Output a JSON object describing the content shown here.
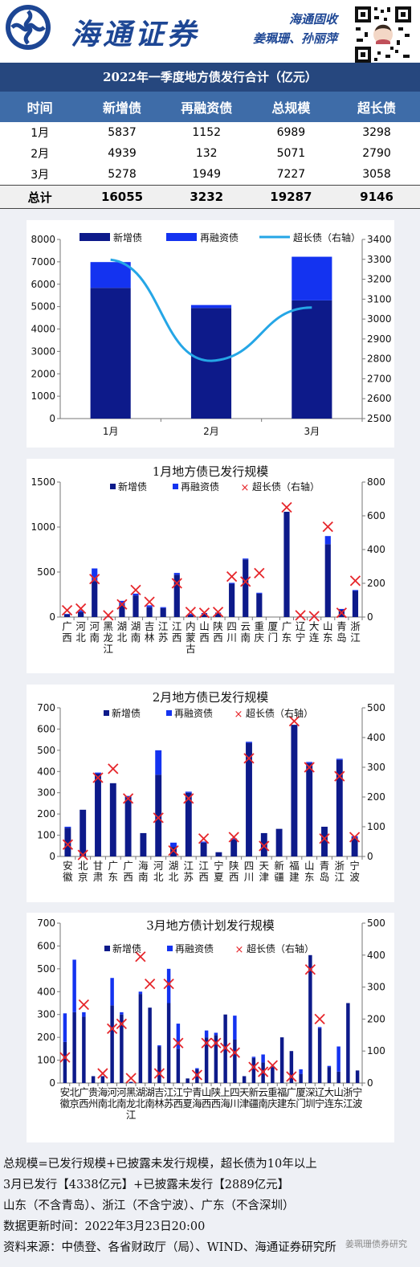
{
  "header": {
    "brand": "海通证券",
    "report_line": "海通固收",
    "authors": "姜珮珊、孙丽萍"
  },
  "summary": {
    "title": "2022年一季度地方债发行合计（亿元）",
    "columns": [
      "时间",
      "新增债",
      "再融资债",
      "总规模",
      "超长债"
    ],
    "rows": [
      [
        "1月",
        "5837",
        "1152",
        "6989",
        "3298"
      ],
      [
        "2月",
        "4939",
        "132",
        "5071",
        "2790"
      ],
      [
        "3月",
        "5278",
        "1949",
        "7227",
        "3058"
      ]
    ],
    "total": [
      "总计",
      "16055",
      "3232",
      "19287",
      "9146"
    ]
  },
  "legend": {
    "new": "新增债",
    "refi": "再融资债",
    "long_right": "超长债（右轴）"
  },
  "chart_titles": {
    "c2": "1月地方债已发行规模",
    "c3": "2月地方债已发行规模",
    "c4": "3月地方债计划发行规模"
  },
  "colors": {
    "new": "#0d1a8a",
    "refi": "#1433f0",
    "line": "#25a6e6",
    "cross": "#e6262b"
  },
  "chart_data": [
    {
      "type": "bar",
      "title": "",
      "categories": [
        "1月",
        "2月",
        "3月"
      ],
      "series": [
        {
          "name": "新增债",
          "values": [
            5837,
            4939,
            5278
          ]
        },
        {
          "name": "再融资债",
          "values": [
            1152,
            132,
            1949
          ]
        },
        {
          "name": "超长债（右轴）",
          "type": "line",
          "axis": "right",
          "values": [
            3298,
            2790,
            3058
          ]
        }
      ],
      "ylim": [
        0,
        8000
      ],
      "y2lim": [
        2500,
        3400
      ],
      "yticks": [
        "0",
        "1000",
        "2000",
        "3000",
        "4000",
        "5000",
        "6000",
        "7000",
        "8000"
      ],
      "y2ticks": [
        "2500",
        "2600",
        "2700",
        "2800",
        "2900",
        "3000",
        "3100",
        "3200",
        "3300",
        "3400"
      ],
      "legend": "top"
    },
    {
      "type": "bar",
      "title": "1月地方债已发行规模",
      "categories": [
        "广西",
        "河北",
        "河南",
        "黑龙江",
        "湖北",
        "湖南",
        "吉林",
        "江苏",
        "江西",
        "内蒙古",
        "山西",
        "陕西",
        "四川",
        "云南",
        "重庆",
        "厦门",
        "广东",
        "辽宁",
        "大连",
        "山东",
        "青岛",
        "浙江"
      ],
      "series": [
        {
          "name": "新增债",
          "values": [
            30,
            55,
            400,
            5,
            140,
            240,
            110,
            100,
            470,
            25,
            35,
            40,
            370,
            640,
            260,
            0,
            1170,
            5,
            5,
            810,
            80,
            290
          ]
        },
        {
          "name": "再融资债",
          "values": [
            5,
            20,
            140,
            0,
            40,
            20,
            20,
            10,
            20,
            10,
            10,
            10,
            10,
            10,
            10,
            0,
            0,
            0,
            0,
            90,
            10,
            10
          ]
        },
        {
          "name": "超长债（右轴）",
          "type": "scatter",
          "axis": "right",
          "values": [
            40,
            50,
            225,
            10,
            75,
            160,
            90,
            null,
            200,
            30,
            25,
            30,
            240,
            210,
            260,
            null,
            650,
            10,
            5,
            535,
            25,
            215
          ]
        }
      ],
      "ylim": [
        0,
        1500
      ],
      "y2lim": [
        0,
        800
      ],
      "yticks": [
        "0",
        "500",
        "1000",
        "1500"
      ],
      "y2ticks": [
        "0",
        "200",
        "400",
        "600",
        "800"
      ],
      "legend": "top"
    },
    {
      "type": "bar",
      "title": "2月地方债已发行规模",
      "categories": [
        "安徽",
        "北京",
        "甘肃",
        "广东",
        "广西",
        "海南",
        "河北",
        "湖北",
        "江苏",
        "江西",
        "宁夏",
        "陕西",
        "四川",
        "天津",
        "新疆",
        "福建",
        "山东",
        "青岛",
        "浙江",
        "宁波"
      ],
      "series": [
        {
          "name": "新增债",
          "values": [
            135,
            220,
            390,
            345,
            280,
            110,
            385,
            45,
            300,
            65,
            20,
            80,
            535,
            110,
            130,
            620,
            440,
            140,
            455,
            90
          ]
        },
        {
          "name": "再融资债",
          "values": [
            5,
            0,
            5,
            0,
            5,
            0,
            115,
            20,
            5,
            5,
            0,
            5,
            5,
            0,
            0,
            0,
            5,
            0,
            5,
            5
          ]
        },
        {
          "name": "超长债（右轴）",
          "type": "scatter",
          "axis": "right",
          "values": [
            40,
            5,
            265,
            295,
            195,
            null,
            130,
            20,
            195,
            60,
            null,
            65,
            330,
            35,
            null,
            455,
            300,
            60,
            270,
            65
          ]
        }
      ],
      "ylim": [
        0,
        700
      ],
      "y2lim": [
        0,
        500
      ],
      "yticks": [
        "0",
        "100",
        "200",
        "300",
        "400",
        "500",
        "600",
        "700"
      ],
      "y2ticks": [
        "0",
        "100",
        "200",
        "300",
        "400",
        "500"
      ],
      "legend": "top"
    },
    {
      "type": "bar",
      "title": "3月地方债计划发行规模",
      "categories": [
        "安徽",
        "北京",
        "广西",
        "贵州",
        "海南",
        "河北",
        "河南",
        "黑龙江",
        "湖北",
        "湖南",
        "吉林",
        "江苏",
        "江西",
        "宁夏",
        "青海",
        "山西",
        "陕西",
        "上海",
        "四川",
        "天津",
        "新疆",
        "云南",
        "重庆",
        "福建",
        "广东",
        "厦门",
        "深圳",
        "辽宁",
        "大连",
        "山东",
        "浙江",
        "宁波"
      ],
      "series": [
        {
          "name": "新增债",
          "values": [
            180,
            310,
            290,
            30,
            30,
            340,
            300,
            5,
            390,
            330,
            160,
            350,
            150,
            20,
            60,
            200,
            210,
            300,
            190,
            30,
            110,
            90,
            70,
            200,
            140,
            40,
            560,
            240,
            70,
            50,
            350,
            55
          ]
        },
        {
          "name": "再融资债",
          "values": [
            125,
            230,
            20,
            0,
            0,
            120,
            10,
            0,
            10,
            0,
            5,
            150,
            110,
            0,
            5,
            30,
            10,
            0,
            105,
            0,
            5,
            35,
            5,
            0,
            0,
            20,
            0,
            5,
            5,
            110,
            0,
            0
          ]
        },
        {
          "name": "超长债（右轴）",
          "type": "scatter",
          "axis": "right",
          "values": [
            80,
            null,
            245,
            null,
            30,
            170,
            185,
            15,
            395,
            310,
            30,
            310,
            125,
            null,
            25,
            125,
            125,
            110,
            95,
            null,
            50,
            35,
            55,
            null,
            20,
            null,
            355,
            200,
            null,
            null,
            null,
            null
          ]
        }
      ],
      "ylim": [
        0,
        700
      ],
      "y2lim": [
        0,
        500
      ],
      "yticks": [
        "0",
        "100",
        "200",
        "300",
        "400",
        "500",
        "600",
        "700"
      ],
      "y2ticks": [
        "0",
        "100",
        "200",
        "300",
        "400",
        "500"
      ],
      "legend": "top"
    }
  ],
  "notes": [
    "总规模=已发行规模+已披露未发行规模，超长债为10年以上",
    "3月已发行【4338亿元】+已披露未发行【2889亿元】",
    "山东（不含青岛）、浙江（不含宁波）、广东（不含深圳）",
    "数据更新时间：2022年3月23日20:00",
    "资料来源：中债登、各省财政厅（局）、WIND、海通证券研究所"
  ],
  "watermark": "姜珮珊债券研究"
}
